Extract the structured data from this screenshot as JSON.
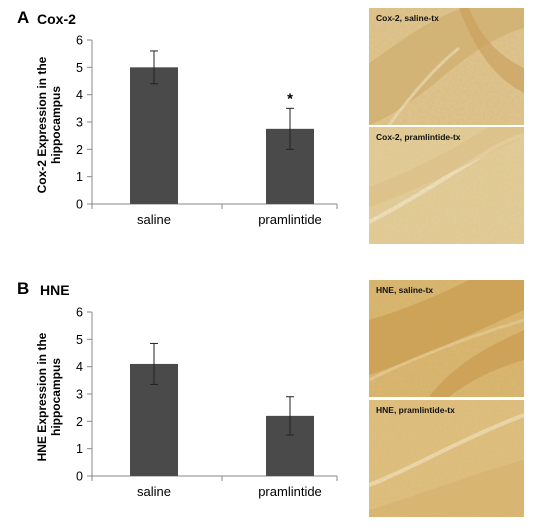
{
  "panels": [
    {
      "letter": "A",
      "title": "Cox-2",
      "micrographs": [
        {
          "label": "Cox-2, saline-tx"
        },
        {
          "label": "Cox-2, pramlintide-tx"
        }
      ]
    },
    {
      "letter": "B",
      "title": "HNE",
      "micrographs": [
        {
          "label": "HNE, saline-tx"
        },
        {
          "label": "HNE, pramlintide-tx"
        }
      ]
    }
  ],
  "chart_data": [
    {
      "type": "bar",
      "categories": [
        "saline",
        "pramlintide"
      ],
      "values": [
        5.0,
        2.75
      ],
      "errors": [
        0.6,
        0.75
      ],
      "annotations": [
        "",
        "*"
      ],
      "ylabel": "Cox-2 Expression in the hippocampus",
      "ylim": [
        0,
        6
      ],
      "yticks": [
        0,
        1,
        2,
        3,
        4,
        5,
        6
      ],
      "bar_color": "#4a4a4a",
      "grid": false
    },
    {
      "type": "bar",
      "categories": [
        "saline",
        "pramlintide"
      ],
      "values": [
        4.1,
        2.2
      ],
      "errors": [
        0.75,
        0.7
      ],
      "annotations": [
        "",
        ""
      ],
      "ylabel": "HNE Expression in the hippocampus",
      "ylim": [
        0,
        6
      ],
      "yticks": [
        0,
        1,
        2,
        3,
        4,
        5,
        6
      ],
      "bar_color": "#4a4a4a",
      "grid": false
    }
  ]
}
